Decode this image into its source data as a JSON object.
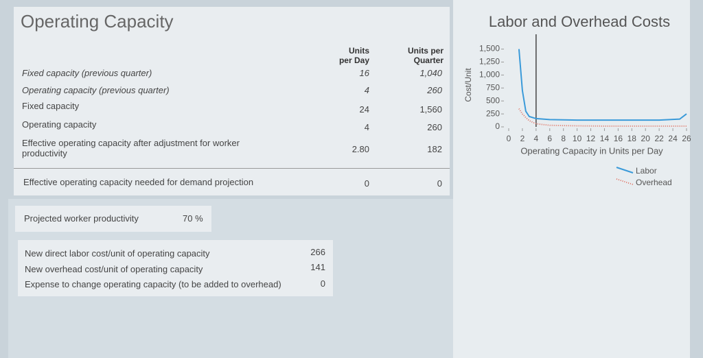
{
  "panel": {
    "title": "Operating Capacity",
    "headers": [
      "Units per Day",
      "Units per Quarter"
    ],
    "rows": [
      [
        "Fixed capacity (previous quarter)",
        "16",
        "1,040"
      ],
      [
        "Operating capacity (previous quarter)",
        "4",
        "260"
      ],
      [
        "Fixed capacity",
        "24",
        "1,560"
      ],
      [
        "Operating capacity",
        "4",
        "260"
      ],
      [
        "Effective operating capacity after adjustment for worker productivity",
        "2.80",
        "182"
      ],
      [
        "Effective operating capacity needed for demand projection",
        "0",
        "0"
      ]
    ]
  },
  "productivity": {
    "label": "Projected worker productivity",
    "value": "70 %"
  },
  "costs": {
    "rows": [
      [
        "New direct labor cost/unit of operating capacity",
        "266"
      ],
      [
        "New overhead cost/unit of operating capacity",
        "141"
      ],
      [
        "Expense to change operating capacity (to be added to overhead)",
        "0"
      ]
    ]
  },
  "chart_data": {
    "type": "line",
    "title": "Labor and Overhead Costs",
    "x_label": "Operating Capacity in Units per Day",
    "y_label": "Cost/Unit",
    "x": [
      1.5,
      2,
      2.5,
      3,
      4,
      6,
      10,
      14,
      18,
      22,
      25,
      26
    ],
    "series": [
      {
        "name": "Labor",
        "color": "#3a9ad9",
        "style": "solid",
        "values": [
          1500,
          700,
          300,
          200,
          160,
          140,
          130,
          130,
          130,
          130,
          150,
          250
        ]
      },
      {
        "name": "Overhead",
        "color": "#e07060",
        "style": "dotted",
        "values": [
          350,
          250,
          180,
          120,
          60,
          30,
          20,
          15,
          15,
          15,
          15,
          15
        ]
      }
    ],
    "vline_x": 4,
    "xlim": [
      0,
      26
    ],
    "xticks": [
      0,
      2,
      4,
      6,
      8,
      10,
      12,
      14,
      16,
      18,
      20,
      22,
      24,
      26
    ],
    "ylim": [
      0,
      1600
    ],
    "yticks": [
      0,
      250,
      500,
      750,
      {
        "value": 1000,
        "label": "1,000"
      },
      {
        "value": 1250,
        "label": "1,250"
      },
      {
        "value": 1500,
        "label": "1,500"
      }
    ],
    "legend": "bottom-right"
  }
}
